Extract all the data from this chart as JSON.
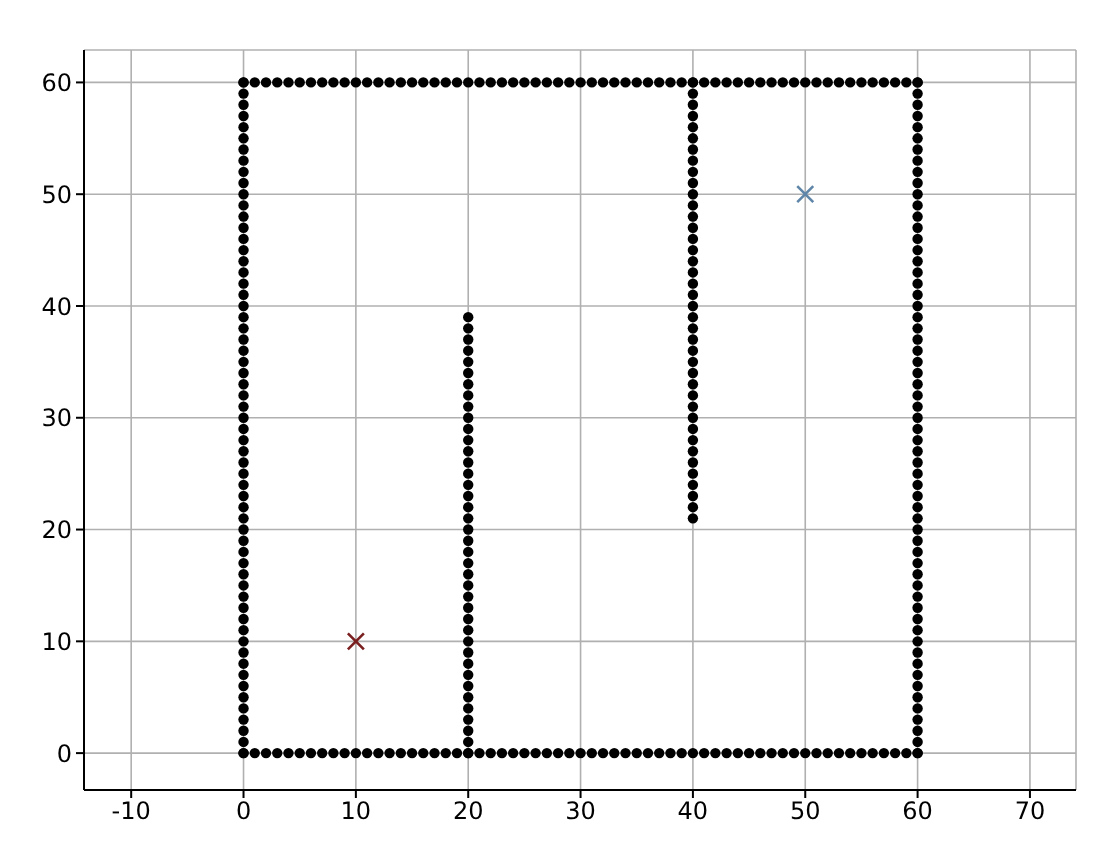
{
  "chart_data": {
    "type": "scatter",
    "grid": true,
    "xlim": [
      -14.2,
      74.1
    ],
    "ylim": [
      -3.3,
      62.9
    ],
    "xticks": [
      -10,
      0,
      10,
      20,
      30,
      40,
      50,
      60,
      70
    ],
    "yticks": [
      0,
      10,
      20,
      30,
      40,
      50,
      60
    ],
    "series": [
      {
        "color": "#000000",
        "marker": "circle",
        "x": [
          0,
          1,
          2,
          3,
          4,
          5,
          6,
          7,
          8,
          9,
          10,
          11,
          12,
          13,
          14,
          15,
          16,
          17,
          18,
          19,
          20,
          21,
          22,
          23,
          24,
          25,
          26,
          27,
          28,
          29,
          30,
          31,
          32,
          33,
          34,
          35,
          36,
          37,
          38,
          39,
          40,
          41,
          42,
          43,
          44,
          45,
          46,
          47,
          48,
          49,
          50,
          51,
          52,
          53,
          54,
          55,
          56,
          57,
          58,
          59,
          60
        ],
        "values": [
          0,
          0,
          0,
          0,
          0,
          0,
          0,
          0,
          0,
          0,
          0,
          0,
          0,
          0,
          0,
          0,
          0,
          0,
          0,
          0,
          0,
          0,
          0,
          0,
          0,
          0,
          0,
          0,
          0,
          0,
          0,
          0,
          0,
          0,
          0,
          0,
          0,
          0,
          0,
          0,
          0,
          0,
          0,
          0,
          0,
          0,
          0,
          0,
          0,
          0,
          0,
          0,
          0,
          0,
          0,
          0,
          0,
          0,
          0,
          0,
          0
        ]
      },
      {
        "color": "#000000",
        "marker": "circle",
        "x": [
          60,
          60,
          60,
          60,
          60,
          60,
          60,
          60,
          60,
          60,
          60,
          60,
          60,
          60,
          60,
          60,
          60,
          60,
          60,
          60,
          60,
          60,
          60,
          60,
          60,
          60,
          60,
          60,
          60,
          60,
          60,
          60,
          60,
          60,
          60,
          60,
          60,
          60,
          60,
          60,
          60,
          60,
          60,
          60,
          60,
          60,
          60,
          60,
          60,
          60,
          60,
          60,
          60,
          60,
          60,
          60,
          60,
          60,
          60,
          60,
          60
        ],
        "values": [
          0,
          1,
          2,
          3,
          4,
          5,
          6,
          7,
          8,
          9,
          10,
          11,
          12,
          13,
          14,
          15,
          16,
          17,
          18,
          19,
          20,
          21,
          22,
          23,
          24,
          25,
          26,
          27,
          28,
          29,
          30,
          31,
          32,
          33,
          34,
          35,
          36,
          37,
          38,
          39,
          40,
          41,
          42,
          43,
          44,
          45,
          46,
          47,
          48,
          49,
          50,
          51,
          52,
          53,
          54,
          55,
          56,
          57,
          58,
          59,
          60
        ]
      },
      {
        "color": "#000000",
        "marker": "circle",
        "x": [
          0,
          1,
          2,
          3,
          4,
          5,
          6,
          7,
          8,
          9,
          10,
          11,
          12,
          13,
          14,
          15,
          16,
          17,
          18,
          19,
          20,
          21,
          22,
          23,
          24,
          25,
          26,
          27,
          28,
          29,
          30,
          31,
          32,
          33,
          34,
          35,
          36,
          37,
          38,
          39,
          40,
          41,
          42,
          43,
          44,
          45,
          46,
          47,
          48,
          49,
          50,
          51,
          52,
          53,
          54,
          55,
          56,
          57,
          58,
          59,
          60
        ],
        "values": [
          60,
          60,
          60,
          60,
          60,
          60,
          60,
          60,
          60,
          60,
          60,
          60,
          60,
          60,
          60,
          60,
          60,
          60,
          60,
          60,
          60,
          60,
          60,
          60,
          60,
          60,
          60,
          60,
          60,
          60,
          60,
          60,
          60,
          60,
          60,
          60,
          60,
          60,
          60,
          60,
          60,
          60,
          60,
          60,
          60,
          60,
          60,
          60,
          60,
          60,
          60,
          60,
          60,
          60,
          60,
          60,
          60,
          60,
          60,
          60,
          60
        ]
      },
      {
        "color": "#000000",
        "marker": "circle",
        "x": [
          0,
          0,
          0,
          0,
          0,
          0,
          0,
          0,
          0,
          0,
          0,
          0,
          0,
          0,
          0,
          0,
          0,
          0,
          0,
          0,
          0,
          0,
          0,
          0,
          0,
          0,
          0,
          0,
          0,
          0,
          0,
          0,
          0,
          0,
          0,
          0,
          0,
          0,
          0,
          0,
          0,
          0,
          0,
          0,
          0,
          0,
          0,
          0,
          0,
          0,
          0,
          0,
          0,
          0,
          0,
          0,
          0,
          0,
          0,
          0,
          0
        ],
        "values": [
          0,
          1,
          2,
          3,
          4,
          5,
          6,
          7,
          8,
          9,
          10,
          11,
          12,
          13,
          14,
          15,
          16,
          17,
          18,
          19,
          20,
          21,
          22,
          23,
          24,
          25,
          26,
          27,
          28,
          29,
          30,
          31,
          32,
          33,
          34,
          35,
          36,
          37,
          38,
          39,
          40,
          41,
          42,
          43,
          44,
          45,
          46,
          47,
          48,
          49,
          50,
          51,
          52,
          53,
          54,
          55,
          56,
          57,
          58,
          59,
          60
        ]
      },
      {
        "color": "#000000",
        "marker": "circle",
        "x": [
          20,
          20,
          20,
          20,
          20,
          20,
          20,
          20,
          20,
          20,
          20,
          20,
          20,
          20,
          20,
          20,
          20,
          20,
          20,
          20,
          20,
          20,
          20,
          20,
          20,
          20,
          20,
          20,
          20,
          20,
          20,
          20,
          20,
          20,
          20,
          20,
          20,
          20,
          20,
          20
        ],
        "values": [
          0,
          1,
          2,
          3,
          4,
          5,
          6,
          7,
          8,
          9,
          10,
          11,
          12,
          13,
          14,
          15,
          16,
          17,
          18,
          19,
          20,
          21,
          22,
          23,
          24,
          25,
          26,
          27,
          28,
          29,
          30,
          31,
          32,
          33,
          34,
          35,
          36,
          37,
          38,
          39
        ]
      },
      {
        "color": "#000000",
        "marker": "circle",
        "x": [
          40,
          40,
          40,
          40,
          40,
          40,
          40,
          40,
          40,
          40,
          40,
          40,
          40,
          40,
          40,
          40,
          40,
          40,
          40,
          40,
          40,
          40,
          40,
          40,
          40,
          40,
          40,
          40,
          40,
          40,
          40,
          40,
          40,
          40,
          40,
          40,
          40,
          40,
          40,
          40
        ],
        "values": [
          60,
          59,
          58,
          57,
          56,
          55,
          54,
          53,
          52,
          51,
          50,
          49,
          48,
          47,
          46,
          45,
          44,
          43,
          42,
          41,
          40,
          39,
          38,
          37,
          36,
          35,
          34,
          33,
          32,
          31,
          30,
          29,
          28,
          27,
          26,
          25,
          24,
          23,
          22,
          21
        ]
      },
      {
        "color": "#7a1f1f",
        "marker": "cross",
        "x": [
          10
        ],
        "values": [
          10
        ]
      },
      {
        "color": "#5f86a8",
        "marker": "cross",
        "x": [
          50
        ],
        "values": [
          50
        ]
      }
    ]
  }
}
